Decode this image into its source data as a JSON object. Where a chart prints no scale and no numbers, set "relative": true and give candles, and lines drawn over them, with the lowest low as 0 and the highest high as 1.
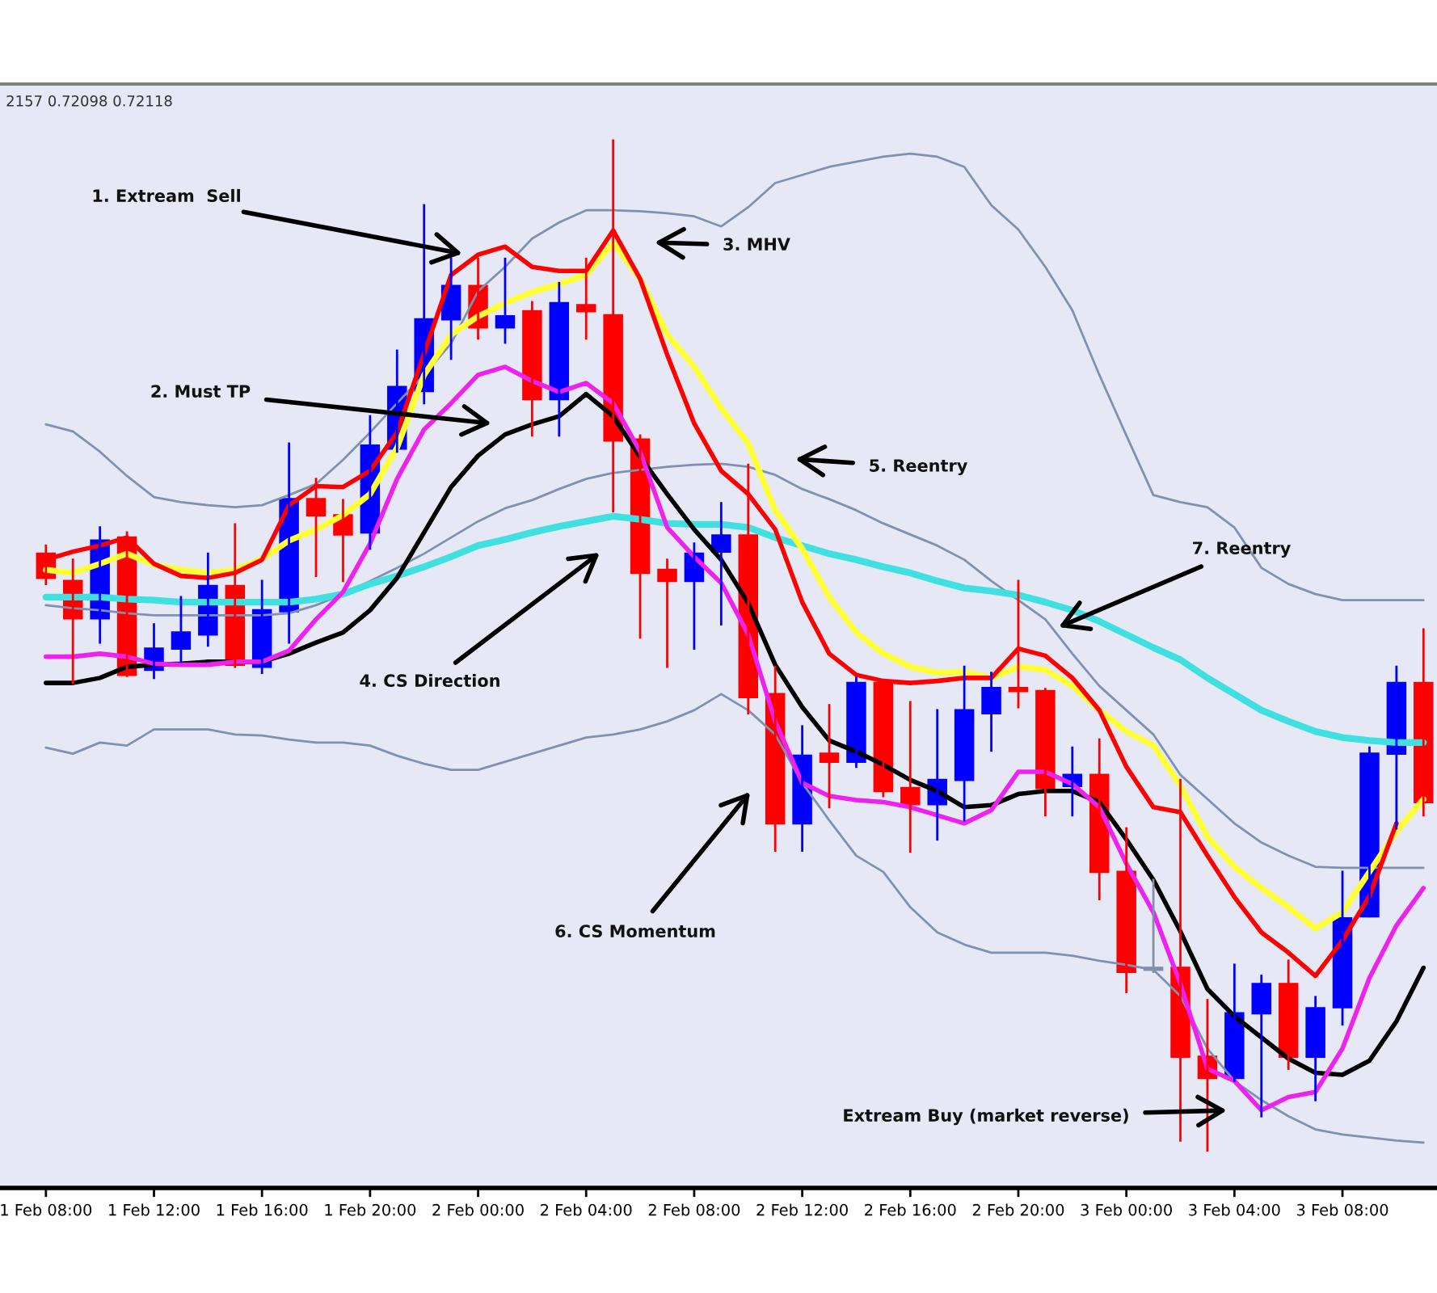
{
  "chart_data": {
    "type": "candlestick",
    "relative": true,
    "categories": [
      "1 Feb 08:00",
      null,
      null,
      null,
      "1 Feb 12:00",
      null,
      null,
      null,
      "1 Feb 16:00",
      null,
      null,
      null,
      "1 Feb 20:00",
      null,
      null,
      null,
      "2 Feb 00:00",
      null,
      null,
      null,
      "2 Feb 04:00",
      null,
      null,
      null,
      "2 Feb 08:00",
      null,
      null,
      null,
      "2 Feb 12:00",
      null,
      null,
      null,
      "2 Feb 16:00",
      null,
      null,
      null,
      "2 Feb 20:00",
      null,
      null,
      null,
      "3 Feb 00:00",
      null,
      null,
      null,
      "3 Feb 04:00",
      null,
      null,
      null,
      "3 Feb 08:00",
      null,
      null,
      null
    ],
    "ohlc": [
      [
        0.591,
        0.599,
        0.561,
        0.567
      ],
      [
        0.564,
        0.585,
        0.463,
        0.527
      ],
      [
        0.527,
        0.617,
        0.503,
        0.604
      ],
      [
        0.607,
        0.612,
        0.47,
        0.471
      ],
      [
        0.476,
        0.521,
        0.468,
        0.497
      ],
      [
        0.497,
        0.548,
        0.484,
        0.513
      ],
      [
        0.511,
        0.591,
        0.5,
        0.559
      ],
      [
        0.559,
        0.62,
        0.479,
        0.481
      ],
      [
        0.479,
        0.564,
        0.473,
        0.535
      ],
      [
        0.534,
        0.7,
        0.503,
        0.645
      ],
      [
        0.645,
        0.665,
        0.569,
        0.629
      ],
      [
        0.629,
        0.644,
        0.564,
        0.61
      ],
      [
        0.612,
        0.727,
        0.596,
        0.698
      ],
      [
        0.695,
        0.792,
        0.692,
        0.756
      ],
      [
        0.752,
        0.936,
        0.74,
        0.823
      ],
      [
        0.823,
        0.883,
        0.784,
        0.856
      ],
      [
        0.856,
        0.883,
        0.804,
        0.815
      ],
      [
        0.815,
        0.883,
        0.8,
        0.826
      ],
      [
        0.831,
        0.84,
        0.708,
        0.744
      ],
      [
        0.744,
        0.859,
        0.708,
        0.839
      ],
      [
        0.837,
        0.883,
        0.804,
        0.831
      ],
      [
        0.827,
        1.0,
        0.633,
        0.703
      ],
      [
        0.704,
        0.708,
        0.508,
        0.572
      ],
      [
        0.575,
        0.585,
        0.479,
        0.564
      ],
      [
        0.564,
        0.601,
        0.497,
        0.591
      ],
      [
        0.593,
        0.641,
        0.521,
        0.609
      ],
      [
        0.609,
        0.679,
        0.433,
        0.449
      ],
      [
        0.452,
        0.479,
        0.297,
        0.324
      ],
      [
        0.324,
        0.42,
        0.297,
        0.391
      ],
      [
        0.393,
        0.441,
        0.34,
        0.385
      ],
      [
        0.385,
        0.468,
        0.38,
        0.463
      ],
      [
        0.463,
        0.465,
        0.351,
        0.356
      ],
      [
        0.359,
        0.444,
        0.296,
        0.343
      ],
      [
        0.343,
        0.436,
        0.308,
        0.367
      ],
      [
        0.367,
        0.479,
        0.327,
        0.436
      ],
      [
        0.433,
        0.473,
        0.396,
        0.458
      ],
      [
        0.458,
        0.564,
        0.439,
        0.455
      ],
      [
        0.455,
        0.457,
        0.332,
        0.359
      ],
      [
        0.361,
        0.399,
        0.332,
        0.372
      ],
      [
        0.372,
        0.407,
        0.249,
        0.276
      ],
      [
        0.276,
        0.319,
        0.157,
        0.177
      ],
      [
        0.181,
        0.268,
        0.177,
        0.179
      ],
      [
        0.181,
        0.367,
        0.01,
        0.093
      ],
      [
        0.093,
        0.149,
        0.0,
        0.072
      ],
      [
        0.072,
        0.184,
        0.069,
        0.136
      ],
      [
        0.136,
        0.173,
        0.034,
        0.165
      ],
      [
        0.165,
        0.188,
        0.081,
        0.093
      ],
      [
        0.093,
        0.152,
        0.05,
        0.141
      ],
      [
        0.142,
        0.276,
        0.125,
        0.23
      ],
      [
        0.232,
        0.399,
        0.232,
        0.393
      ],
      [
        0.393,
        0.479,
        0.319,
        0.463
      ],
      [
        0.463,
        0.516,
        0.332,
        0.345
      ]
    ],
    "colors": [
      "#ff0000",
      "#ff0000",
      "#0000ff",
      "#ff0000",
      "#0000ff",
      "#0000ff",
      "#0000ff",
      "#ff0000",
      "#0000ff",
      "#0000ff",
      "#ff0000",
      "#ff0000",
      "#0000ff",
      "#0000ff",
      "#0000ff",
      "#0000ff",
      "#ff0000",
      "#0000ff",
      "#ff0000",
      "#0000ff",
      "#ff0000",
      "#ff0000",
      "#ff0000",
      "#ff0000",
      "#0000ff",
      "#0000ff",
      "#ff0000",
      "#ff0000",
      "#0000ff",
      "#ff0000",
      "#0000ff",
      "#ff0000",
      "#ff0000",
      "#0000ff",
      "#0000ff",
      "#0000ff",
      "#ff0000",
      "#ff0000",
      "#0000ff",
      "#ff0000",
      "#ff0000",
      "#8090a8",
      "#ff0000",
      "#ff0000",
      "#0000ff",
      "#0000ff",
      "#ff0000",
      "#0000ff",
      "#0000ff",
      "#0000ff",
      "#0000ff",
      "#ff0000"
    ],
    "series": [
      {
        "type": "line",
        "color": "#8090b0",
        "values": [
          0.719,
          0.712,
          0.692,
          0.668,
          0.647,
          0.642,
          0.639,
          0.637,
          0.639,
          0.649,
          0.66,
          0.684,
          0.711,
          0.74,
          0.768,
          0.799,
          0.851,
          0.875,
          0.903,
          0.919,
          0.931,
          0.931,
          0.93,
          0.928,
          0.925,
          0.915,
          0.934,
          0.958,
          0.966,
          0.974,
          0.979,
          0.984,
          0.987,
          0.984,
          0.974,
          0.936,
          0.912,
          0.875,
          0.832,
          0.768,
          0.708,
          0.649,
          0.642,
          0.637,
          0.617,
          0.577,
          0.561,
          0.551,
          0.545,
          0.545,
          0.545,
          0.545
        ]
      },
      {
        "type": "line",
        "color": "#8090b0",
        "values": [
          0.54,
          0.537,
          0.535,
          0.532,
          0.53,
          0.53,
          0.53,
          0.53,
          0.53,
          0.532,
          0.54,
          0.551,
          0.564,
          0.577,
          0.591,
          0.607,
          0.623,
          0.636,
          0.644,
          0.655,
          0.665,
          0.671,
          0.674,
          0.677,
          0.679,
          0.68,
          0.677,
          0.669,
          0.655,
          0.645,
          0.634,
          0.621,
          0.61,
          0.599,
          0.585,
          0.564,
          0.545,
          0.526,
          0.492,
          0.46,
          0.436,
          0.412,
          0.372,
          0.348,
          0.324,
          0.305,
          0.292,
          0.281,
          0.28,
          0.28,
          0.28,
          0.28
        ]
      },
      {
        "type": "line",
        "color": "#8090b0",
        "values": [
          0.399,
          0.393,
          0.404,
          0.401,
          0.417,
          0.417,
          0.417,
          0.412,
          0.411,
          0.407,
          0.404,
          0.404,
          0.401,
          0.391,
          0.383,
          0.377,
          0.377,
          0.385,
          0.393,
          0.401,
          0.409,
          0.412,
          0.417,
          0.425,
          0.436,
          0.452,
          0.436,
          0.412,
          0.364,
          0.327,
          0.292,
          0.276,
          0.241,
          0.216,
          0.204,
          0.196,
          0.196,
          0.196,
          0.193,
          0.188,
          0.184,
          0.179,
          0.153,
          0.101,
          0.069,
          0.05,
          0.034,
          0.021,
          0.016,
          0.013,
          0.01,
          0.008
        ]
      },
      {
        "type": "line",
        "color": "#40e0e0",
        "values": [
          0.548,
          0.548,
          0.548,
          0.546,
          0.545,
          0.543,
          0.543,
          0.543,
          0.543,
          0.543,
          0.546,
          0.551,
          0.561,
          0.569,
          0.578,
          0.588,
          0.599,
          0.605,
          0.612,
          0.618,
          0.623,
          0.628,
          0.625,
          0.621,
          0.62,
          0.62,
          0.617,
          0.607,
          0.599,
          0.591,
          0.585,
          0.578,
          0.572,
          0.564,
          0.557,
          0.554,
          0.55,
          0.543,
          0.535,
          0.524,
          0.511,
          0.498,
          0.486,
          0.468,
          0.452,
          0.436,
          0.425,
          0.415,
          0.409,
          0.406,
          0.404,
          0.404
        ]
      },
      {
        "type": "line",
        "color": "#000000",
        "values": [
          0.463,
          0.463,
          0.468,
          0.479,
          0.481,
          0.482,
          0.484,
          0.484,
          0.484,
          0.492,
          0.503,
          0.513,
          0.535,
          0.567,
          0.612,
          0.657,
          0.688,
          0.709,
          0.719,
          0.727,
          0.749,
          0.727,
          0.687,
          0.65,
          0.615,
          0.585,
          0.542,
          0.481,
          0.439,
          0.406,
          0.395,
          0.382,
          0.367,
          0.356,
          0.34,
          0.342,
          0.353,
          0.356,
          0.356,
          0.345,
          0.308,
          0.268,
          0.217,
          0.16,
          0.133,
          0.112,
          0.091,
          0.077,
          0.075,
          0.089,
          0.128,
          0.181
        ]
      },
      {
        "type": "line",
        "color": "#ee22ee",
        "values": [
          0.489,
          0.489,
          0.492,
          0.489,
          0.482,
          0.481,
          0.481,
          0.484,
          0.484,
          0.495,
          0.526,
          0.553,
          0.601,
          0.665,
          0.714,
          0.74,
          0.768,
          0.776,
          0.762,
          0.751,
          0.76,
          0.74,
          0.692,
          0.617,
          0.588,
          0.562,
          0.511,
          0.425,
          0.364,
          0.351,
          0.347,
          0.345,
          0.34,
          0.332,
          0.324,
          0.337,
          0.375,
          0.375,
          0.363,
          0.34,
          0.284,
          0.236,
          0.165,
          0.081,
          0.069,
          0.04,
          0.053,
          0.058,
          0.101,
          0.171,
          0.223,
          0.26
        ]
      },
      {
        "type": "line",
        "color": "#ffff33",
        "values": [
          0.575,
          0.572,
          0.581,
          0.591,
          0.58,
          0.575,
          0.572,
          0.575,
          0.586,
          0.604,
          0.615,
          0.629,
          0.65,
          0.696,
          0.768,
          0.808,
          0.826,
          0.839,
          0.85,
          0.858,
          0.867,
          0.899,
          0.863,
          0.808,
          0.776,
          0.735,
          0.7,
          0.634,
          0.596,
          0.548,
          0.513,
          0.492,
          0.479,
          0.473,
          0.474,
          0.468,
          0.479,
          0.476,
          0.46,
          0.436,
          0.415,
          0.401,
          0.361,
          0.311,
          0.281,
          0.26,
          0.241,
          0.22,
          0.236,
          0.276,
          0.316,
          0.348
        ]
      },
      {
        "type": "line",
        "color": "#ff0000",
        "values": [
          0.585,
          0.593,
          0.599,
          0.607,
          0.581,
          0.569,
          0.567,
          0.572,
          0.585,
          0.639,
          0.658,
          0.657,
          0.673,
          0.711,
          0.789,
          0.867,
          0.887,
          0.895,
          0.875,
          0.871,
          0.871,
          0.911,
          0.863,
          0.788,
          0.72,
          0.673,
          0.65,
          0.615,
          0.543,
          0.492,
          0.471,
          0.465,
          0.463,
          0.465,
          0.468,
          0.468,
          0.497,
          0.49,
          0.468,
          0.436,
          0.38,
          0.34,
          0.335,
          0.292,
          0.251,
          0.216,
          0.196,
          0.173,
          0.208,
          0.252,
          0.324,
          null
        ]
      }
    ],
    "annotations": [
      "2157 0.72098 0.72118",
      "1. Extream  Sell",
      "2. Must TP",
      "3. MHV",
      "4. CS Direction",
      "5. Reentry",
      "6. CS Momentum",
      "7. Reentry",
      "Extream Buy (market reverse)"
    ]
  }
}
